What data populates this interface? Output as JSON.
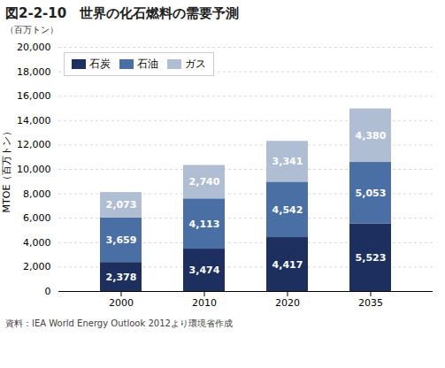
{
  "chart_data": {
    "type": "bar",
    "stacked": true,
    "title": "図2-2-10　世界の化石燃料の需要予測",
    "subtitle": "（百万トン）",
    "y_label": "MTOE（百万トン）",
    "source": "資料：IEA World Energy Outlook 2012より環境省作成",
    "categories": [
      "2000",
      "2010",
      "2020",
      "2035"
    ],
    "series": [
      {
        "name": "石炭",
        "color": "#1c2f5e",
        "values": [
          2378,
          3474,
          4417,
          5523
        ],
        "value_labels": [
          "2,378",
          "3,474",
          "4,417",
          "5,523"
        ]
      },
      {
        "name": "石油",
        "color": "#4a6fa5",
        "values": [
          3659,
          4113,
          4542,
          5053
        ],
        "value_labels": [
          "3,659",
          "4,113",
          "4,542",
          "5,053"
        ]
      },
      {
        "name": "ガス",
        "color": "#b0bed4",
        "values": [
          2073,
          2740,
          3341,
          4380
        ],
        "value_labels": [
          "2,073",
          "2,740",
          "3,341",
          "4,380"
        ]
      }
    ],
    "ylim": [
      0,
      20000
    ],
    "yticks": [
      0,
      {
        "value": 2000,
        "label": "2,000"
      },
      {
        "value": 4000,
        "label": "4,000"
      },
      {
        "value": 6000,
        "label": "6,000"
      },
      {
        "value": 8000,
        "label": "8,000"
      },
      {
        "value": 10000,
        "label": "10,000"
      },
      {
        "value": 12000,
        "label": "12,000"
      },
      {
        "value": 14000,
        "label": "14,000"
      },
      {
        "value": 16000,
        "label": "16,000"
      },
      {
        "value": 18000,
        "label": "18,000"
      },
      {
        "value": 20000,
        "label": "20,000"
      }
    ],
    "grid": true,
    "legend": "upper left",
    "data_labels": true
  }
}
